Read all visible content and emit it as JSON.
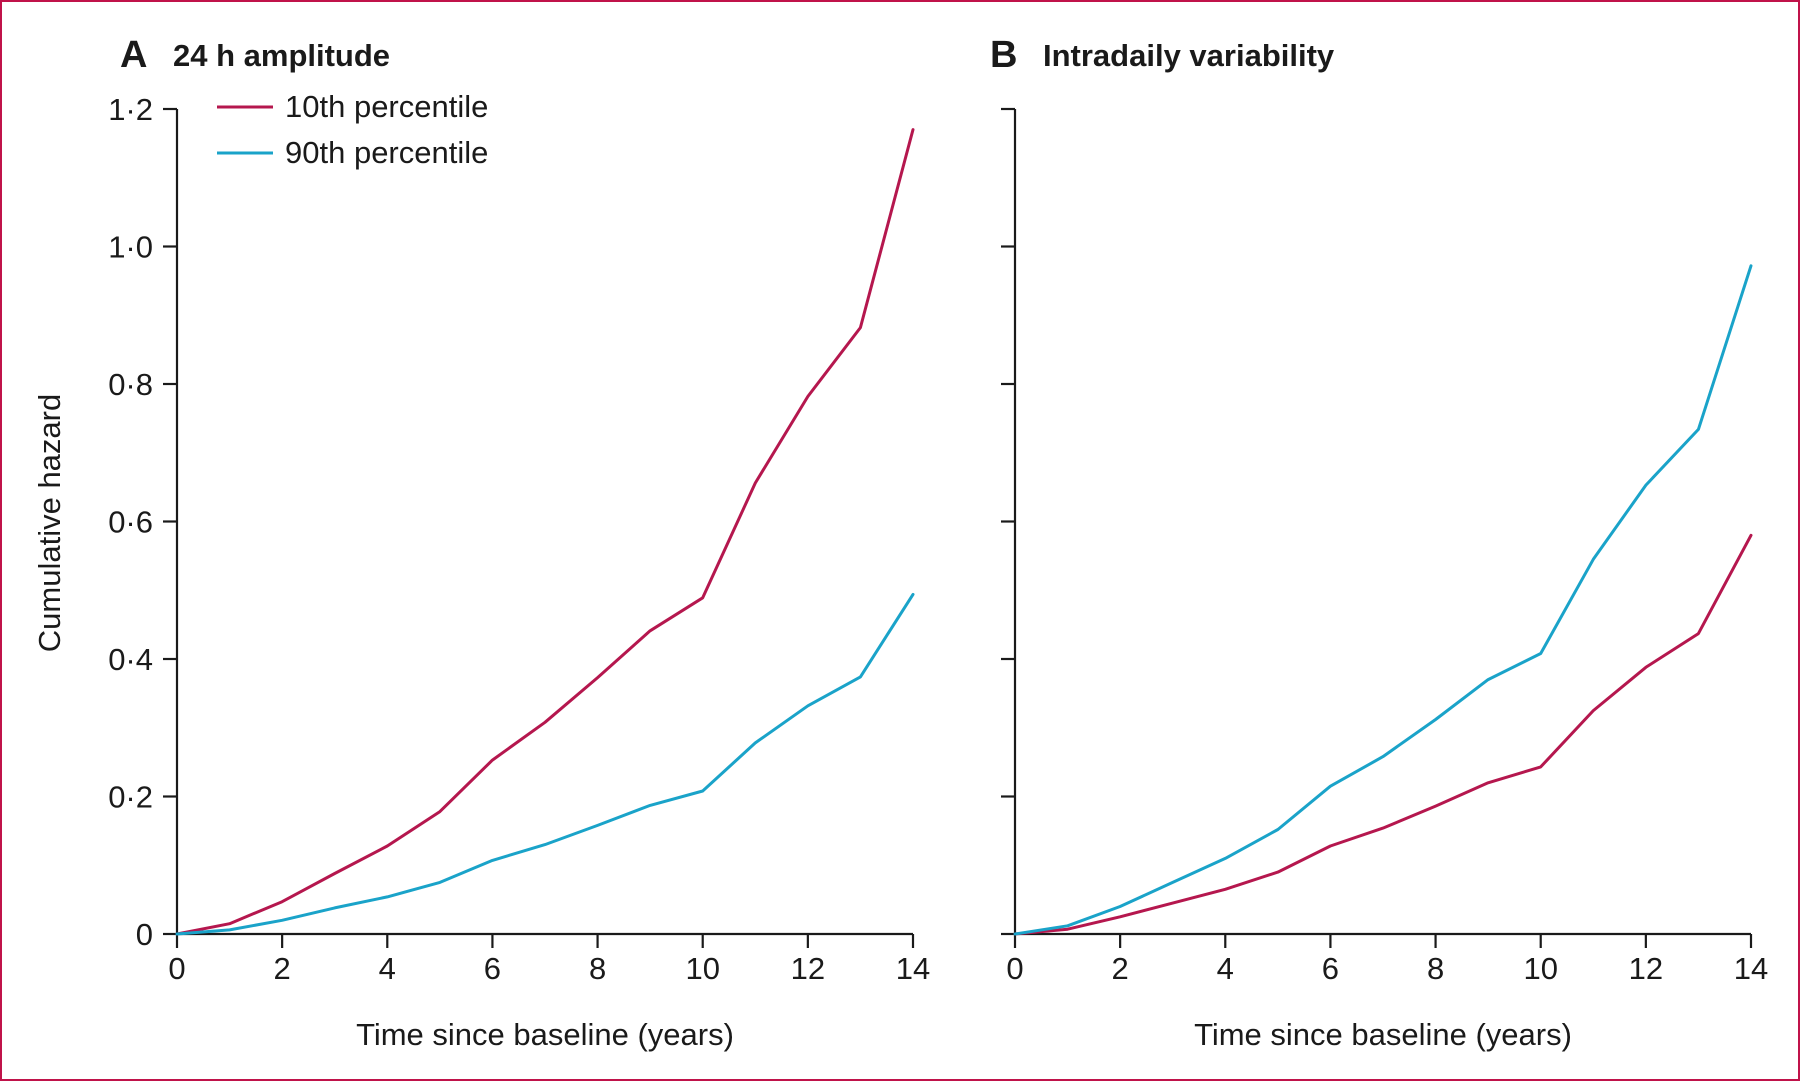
{
  "colors": {
    "p10": "#b5174e",
    "p90": "#1aa3c9",
    "frame": "#c0134a",
    "axis": "#1a1a1a"
  },
  "legend": {
    "items": [
      {
        "label": "10th percentile",
        "color": "#b5174e"
      },
      {
        "label": "90th percentile",
        "color": "#1aa3c9"
      }
    ]
  },
  "chart_data": [
    {
      "type": "line",
      "panel_letter": "A",
      "title": "24 h amplitude",
      "xlabel": "Time since baseline (years)",
      "ylabel": "Cumulative hazard",
      "xlim": [
        0,
        14
      ],
      "ylim": [
        0,
        1.2
      ],
      "x_ticks": [
        0,
        2,
        4,
        6,
        8,
        10,
        12,
        14
      ],
      "x_tick_labels": [
        "0",
        "2",
        "4",
        "6",
        "8",
        "10",
        "12",
        "14"
      ],
      "y_ticks": [
        0,
        0.2,
        0.4,
        0.6,
        0.8,
        1.0,
        1.2
      ],
      "y_tick_labels": [
        "0",
        "0·2",
        "0·4",
        "0·6",
        "0·8",
        "1·0",
        "1·2"
      ],
      "x": [
        0,
        1,
        2,
        3,
        4,
        5,
        6,
        7,
        8,
        9,
        10,
        11,
        12,
        13,
        14
      ],
      "series": [
        {
          "name": "10th percentile",
          "color": "#b5174e",
          "values": [
            0,
            0.015,
            0.047,
            0.088,
            0.128,
            0.178,
            0.253,
            0.308,
            0.373,
            0.441,
            0.489,
            0.656,
            0.782,
            0.882,
            1.17
          ]
        },
        {
          "name": "90th percentile",
          "color": "#1aa3c9",
          "values": [
            0,
            0.006,
            0.02,
            0.038,
            0.054,
            0.075,
            0.107,
            0.13,
            0.158,
            0.187,
            0.208,
            0.278,
            0.332,
            0.374,
            0.494
          ]
        }
      ]
    },
    {
      "type": "line",
      "panel_letter": "B",
      "title": "Intradaily variability",
      "xlabel": "Time since baseline (years)",
      "ylabel": "",
      "xlim": [
        0,
        14
      ],
      "ylim": [
        0,
        1.2
      ],
      "x_ticks": [
        0,
        2,
        4,
        6,
        8,
        10,
        12,
        14
      ],
      "x_tick_labels": [
        "0",
        "2",
        "4",
        "6",
        "8",
        "10",
        "12",
        "14"
      ],
      "y_ticks": [
        0,
        0.2,
        0.4,
        0.6,
        0.8,
        1.0,
        1.2
      ],
      "y_tick_labels": [
        "",
        "",
        "",
        "",
        "",
        "",
        ""
      ],
      "x": [
        0,
        1,
        2,
        3,
        4,
        5,
        6,
        7,
        8,
        9,
        10,
        11,
        12,
        13,
        14
      ],
      "series": [
        {
          "name": "10th percentile",
          "color": "#b5174e",
          "values": [
            0,
            0.007,
            0.025,
            0.045,
            0.065,
            0.09,
            0.128,
            0.154,
            0.186,
            0.22,
            0.243,
            0.325,
            0.388,
            0.437,
            0.58
          ]
        },
        {
          "name": "90th percentile",
          "color": "#1aa3c9",
          "values": [
            0,
            0.012,
            0.04,
            0.075,
            0.11,
            0.152,
            0.215,
            0.258,
            0.312,
            0.37,
            0.408,
            0.545,
            0.653,
            0.734,
            0.972
          ]
        }
      ]
    }
  ]
}
